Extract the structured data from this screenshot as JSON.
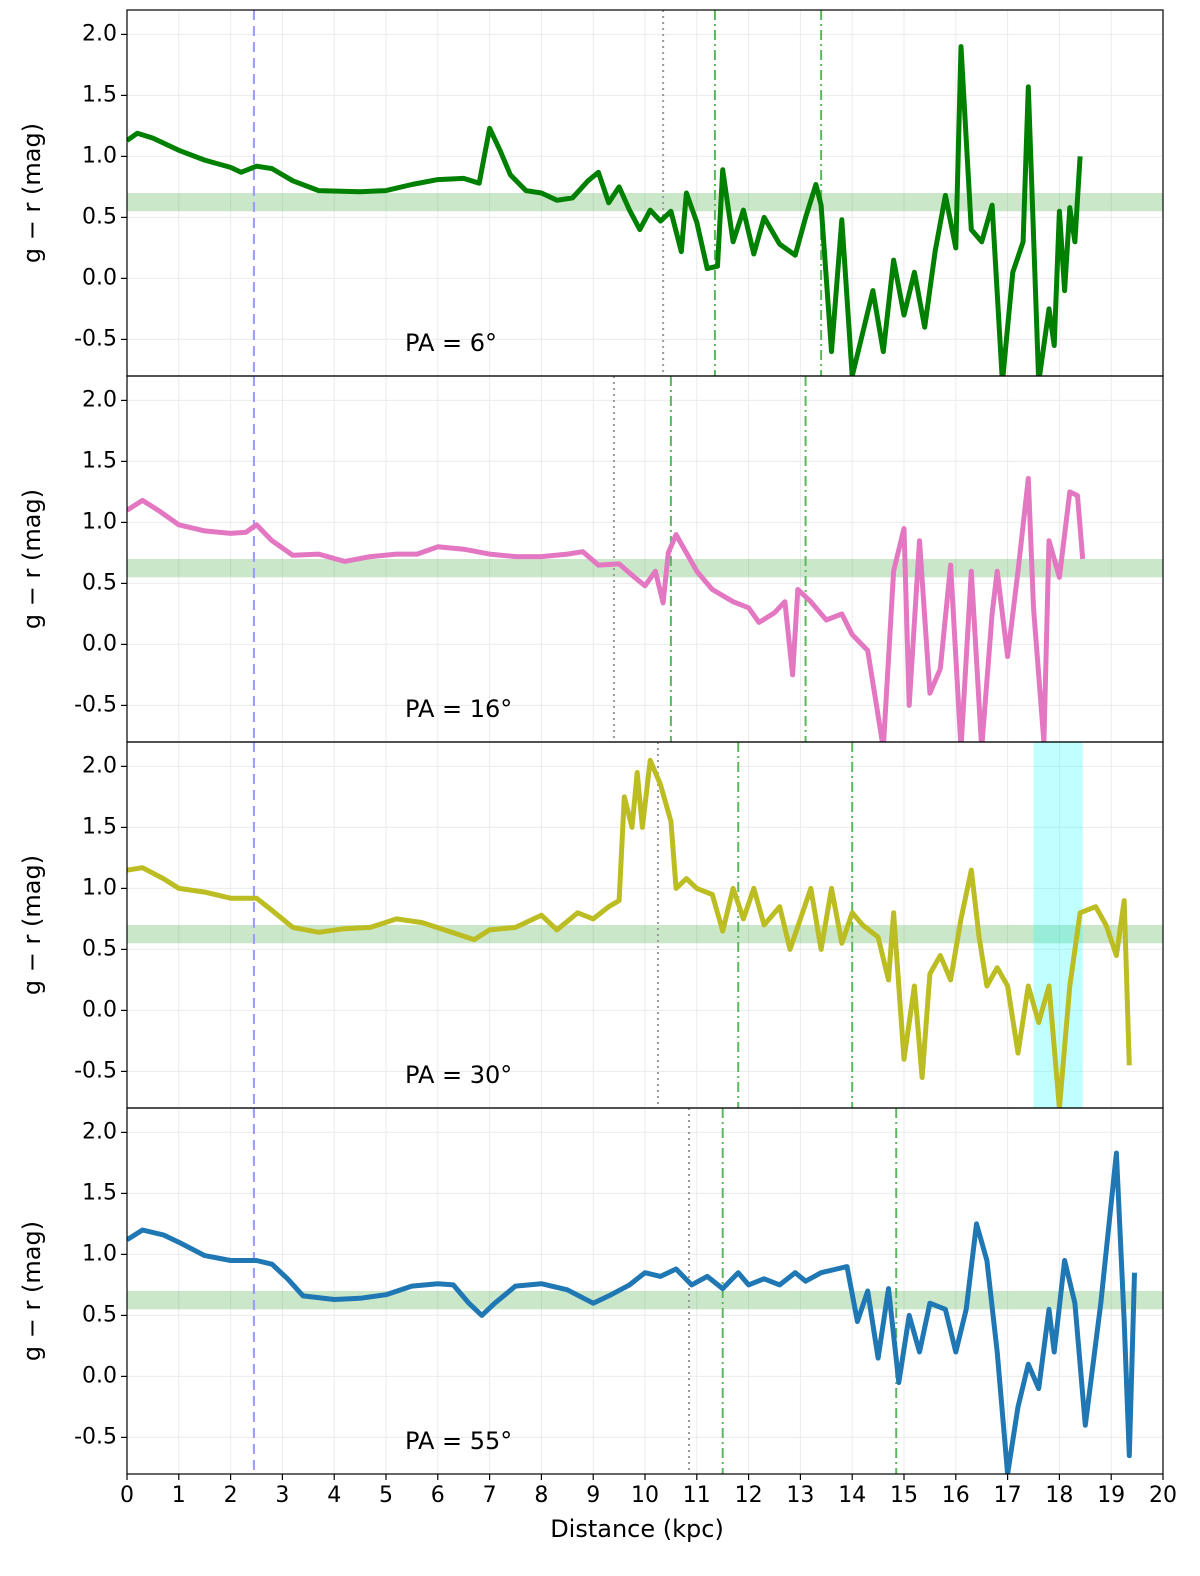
{
  "chart_data": [
    {
      "type": "line",
      "annotation": "PA = 6°",
      "ylabel": "g − r (mag)",
      "color": "#008000",
      "x": [
        0,
        0.2,
        0.5,
        1,
        1.5,
        2,
        2.2,
        2.5,
        2.8,
        3.2,
        3.7,
        4.5,
        5,
        5.5,
        6,
        6.5,
        6.8,
        7,
        7.2,
        7.4,
        7.7,
        8,
        8.3,
        8.6,
        8.9,
        9.1,
        9.3,
        9.5,
        9.7,
        9.9,
        10.1,
        10.3,
        10.5,
        10.7,
        10.8,
        11,
        11.2,
        11.4,
        11.5,
        11.7,
        11.9,
        12.1,
        12.3,
        12.6,
        12.9,
        13.1,
        13.3,
        13.4,
        13.6,
        13.8,
        14,
        14.2,
        14.4,
        14.6,
        14.8,
        15,
        15.2,
        15.4,
        15.6,
        15.8,
        16,
        16.1,
        16.3,
        16.5,
        16.7,
        16.9,
        17.1,
        17.3,
        17.4,
        17.6,
        17.8,
        17.9,
        18,
        18.1,
        18.2,
        18.3,
        18.4
      ],
      "values": [
        1.13,
        1.19,
        1.15,
        1.05,
        0.97,
        0.91,
        0.87,
        0.92,
        0.9,
        0.8,
        0.72,
        0.71,
        0.72,
        0.77,
        0.81,
        0.82,
        0.78,
        1.23,
        1.05,
        0.85,
        0.72,
        0.7,
        0.64,
        0.66,
        0.8,
        0.87,
        0.62,
        0.75,
        0.56,
        0.4,
        0.56,
        0.47,
        0.55,
        0.22,
        0.7,
        0.46,
        0.08,
        0.1,
        0.89,
        0.3,
        0.56,
        0.2,
        0.5,
        0.28,
        0.19,
        0.5,
        0.77,
        0.6,
        -0.6,
        0.48,
        -0.8,
        -0.45,
        -0.1,
        -0.6,
        0.15,
        -0.3,
        0.05,
        -0.4,
        0.22,
        0.68,
        0.25,
        1.9,
        0.4,
        0.3,
        0.6,
        -0.85,
        0.05,
        0.3,
        1.57,
        -0.85,
        -0.25,
        -0.55,
        0.55,
        -0.1,
        0.58,
        0.3,
        1.0
      ],
      "vlines": [
        {
          "x": 2.45,
          "color": "#9999ff",
          "style": "dashed"
        },
        {
          "x": 10.35,
          "color": "#999999",
          "style": "dotted"
        },
        {
          "x": 11.35,
          "color": "#5cb85c",
          "style": "dashdot"
        },
        {
          "x": 13.4,
          "color": "#5cb85c",
          "style": "dashdot"
        }
      ],
      "hband": [
        0.55,
        0.7
      ],
      "hband_color": "#2ca02c",
      "xlim": [
        0,
        20
      ],
      "xticks": [
        0,
        1,
        2,
        3,
        4,
        5,
        6,
        7,
        8,
        9,
        10,
        11,
        12,
        13,
        14,
        15,
        16,
        17,
        18,
        19,
        20
      ],
      "ylim": [
        -0.8,
        2.2
      ],
      "yticks": [
        -0.5,
        {
          "value": 0,
          "label": "0.0"
        },
        0.5,
        {
          "value": 1,
          "label": "1.0"
        },
        1.5,
        {
          "value": 2,
          "label": "2.0"
        }
      ],
      "grid": true
    },
    {
      "type": "line",
      "annotation": "PA = 16°",
      "ylabel": "g − r (mag)",
      "color": "#e377c2",
      "x": [
        0,
        0.3,
        0.6,
        1,
        1.5,
        2,
        2.3,
        2.5,
        2.8,
        3.2,
        3.7,
        4.2,
        4.7,
        5.2,
        5.6,
        6,
        6.5,
        7,
        7.5,
        8,
        8.5,
        8.8,
        9.1,
        9.5,
        9.8,
        10,
        10.2,
        10.35,
        10.45,
        10.6,
        10.8,
        11,
        11.3,
        11.7,
        12,
        12.2,
        12.5,
        12.7,
        12.85,
        12.95,
        13.2,
        13.5,
        13.8,
        14,
        14.3,
        14.6,
        14.8,
        15,
        15.1,
        15.3,
        15.5,
        15.7,
        15.9,
        16.1,
        16.3,
        16.5,
        16.7,
        16.8,
        17,
        17.2,
        17.4,
        17.5,
        17.7,
        17.8,
        18,
        18.2,
        18.35,
        18.45
      ],
      "values": [
        1.1,
        1.18,
        1.1,
        0.98,
        0.93,
        0.91,
        0.92,
        0.98,
        0.85,
        0.73,
        0.74,
        0.68,
        0.72,
        0.74,
        0.74,
        0.8,
        0.78,
        0.74,
        0.72,
        0.72,
        0.74,
        0.76,
        0.65,
        0.66,
        0.55,
        0.48,
        0.6,
        0.34,
        0.75,
        0.9,
        0.75,
        0.6,
        0.45,
        0.35,
        0.3,
        0.18,
        0.26,
        0.35,
        -0.25,
        0.45,
        0.35,
        0.2,
        0.25,
        0.08,
        -0.05,
        -0.85,
        0.6,
        0.95,
        -0.5,
        0.85,
        -0.4,
        -0.2,
        0.65,
        -0.85,
        0.6,
        -0.85,
        0.25,
        0.6,
        -0.1,
        0.6,
        1.36,
        0.3,
        -0.8,
        0.85,
        0.55,
        1.25,
        1.22,
        0.7
      ],
      "vlines": [
        {
          "x": 2.45,
          "color": "#9999ff",
          "style": "dashed"
        },
        {
          "x": 9.4,
          "color": "#999999",
          "style": "dotted"
        },
        {
          "x": 10.5,
          "color": "#5cb85c",
          "style": "dashdot"
        },
        {
          "x": 13.1,
          "color": "#5cb85c",
          "style": "dashdot"
        }
      ],
      "hband": [
        0.55,
        0.7
      ],
      "hband_color": "#2ca02c",
      "xlim": [
        0,
        20
      ],
      "xticks": [
        0,
        1,
        2,
        3,
        4,
        5,
        6,
        7,
        8,
        9,
        10,
        11,
        12,
        13,
        14,
        15,
        16,
        17,
        18,
        19,
        20
      ],
      "ylim": [
        -0.8,
        2.2
      ],
      "yticks": [
        -0.5,
        {
          "value": 0,
          "label": "0.0"
        },
        0.5,
        {
          "value": 1,
          "label": "1.0"
        },
        1.5,
        {
          "value": 2,
          "label": "2.0"
        }
      ],
      "grid": true
    },
    {
      "type": "line",
      "annotation": "PA = 30°",
      "ylabel": "g − r (mag)",
      "color": "#bcbd22",
      "x": [
        0,
        0.3,
        0.7,
        1,
        1.5,
        2,
        2.5,
        2.8,
        3.2,
        3.7,
        4.2,
        4.7,
        5.2,
        5.7,
        6.2,
        6.7,
        7,
        7.5,
        8,
        8.3,
        8.7,
        9,
        9.3,
        9.5,
        9.6,
        9.75,
        9.85,
        9.95,
        10.1,
        10.3,
        10.5,
        10.6,
        10.8,
        11,
        11.3,
        11.5,
        11.7,
        11.9,
        12.1,
        12.3,
        12.6,
        12.8,
        13,
        13.2,
        13.4,
        13.6,
        13.8,
        14,
        14.2,
        14.5,
        14.7,
        14.8,
        15,
        15.2,
        15.35,
        15.5,
        15.7,
        15.9,
        16.1,
        16.3,
        16.45,
        16.6,
        16.8,
        17,
        17.2,
        17.4,
        17.6,
        17.8,
        18,
        18.2,
        18.4,
        18.7,
        18.9,
        19.1,
        19.25,
        19.35
      ],
      "values": [
        1.15,
        1.17,
        1.08,
        1.0,
        0.97,
        0.92,
        0.92,
        0.82,
        0.68,
        0.64,
        0.67,
        0.68,
        0.75,
        0.72,
        0.65,
        0.58,
        0.66,
        0.68,
        0.78,
        0.66,
        0.8,
        0.75,
        0.85,
        0.9,
        1.75,
        1.5,
        1.95,
        1.5,
        2.05,
        1.85,
        1.55,
        1.0,
        1.08,
        1.0,
        0.95,
        0.65,
        1.0,
        0.75,
        1.0,
        0.7,
        0.85,
        0.5,
        0.75,
        1.0,
        0.5,
        1.0,
        0.55,
        0.8,
        0.7,
        0.6,
        0.25,
        0.8,
        -0.4,
        0.2,
        -0.55,
        0.3,
        0.45,
        0.25,
        0.75,
        1.15,
        0.6,
        0.2,
        0.35,
        0.2,
        -0.35,
        0.2,
        -0.1,
        0.2,
        -0.8,
        0.2,
        0.8,
        0.85,
        0.7,
        0.45,
        0.9,
        -0.45
      ],
      "vlines": [
        {
          "x": 2.45,
          "color": "#9999ff",
          "style": "dashed"
        },
        {
          "x": 10.25,
          "color": "#999999",
          "style": "dotted"
        },
        {
          "x": 11.8,
          "color": "#5cb85c",
          "style": "dashdot"
        },
        {
          "x": 14.0,
          "color": "#5cb85c",
          "style": "dashdot"
        }
      ],
      "hband": [
        0.55,
        0.7
      ],
      "hband_color": "#2ca02c",
      "vband": [
        17.5,
        18.45
      ],
      "vband_color": "#00ffff",
      "xlim": [
        0,
        20
      ],
      "xticks": [
        0,
        1,
        2,
        3,
        4,
        5,
        6,
        7,
        8,
        9,
        10,
        11,
        12,
        13,
        14,
        15,
        16,
        17,
        18,
        19,
        20
      ],
      "ylim": [
        -0.8,
        2.2
      ],
      "yticks": [
        -0.5,
        {
          "value": 0,
          "label": "0.0"
        },
        0.5,
        {
          "value": 1,
          "label": "1.0"
        },
        1.5,
        {
          "value": 2,
          "label": "2.0"
        }
      ],
      "grid": true
    },
    {
      "type": "line",
      "annotation": "PA = 55°",
      "ylabel": "g − r (mag)",
      "xlabel": "Distance (kpc)",
      "color": "#1f77b4",
      "x": [
        0,
        0.3,
        0.7,
        1,
        1.5,
        2,
        2.5,
        2.8,
        3.1,
        3.4,
        4,
        4.5,
        5,
        5.5,
        6,
        6.3,
        6.6,
        6.85,
        7.1,
        7.5,
        8,
        8.5,
        9,
        9.3,
        9.7,
        10,
        10.3,
        10.6,
        10.9,
        11.2,
        11.5,
        11.8,
        12,
        12.3,
        12.6,
        12.9,
        13.1,
        13.4,
        13.7,
        13.9,
        14.1,
        14.3,
        14.5,
        14.7,
        14.9,
        15.1,
        15.3,
        15.5,
        15.8,
        16,
        16.2,
        16.4,
        16.6,
        16.8,
        17,
        17.2,
        17.4,
        17.6,
        17.8,
        17.9,
        18.1,
        18.3,
        18.5,
        18.8,
        19.1,
        19.25,
        19.35,
        19.45
      ],
      "values": [
        1.12,
        1.2,
        1.16,
        1.1,
        0.99,
        0.95,
        0.95,
        0.92,
        0.8,
        0.66,
        0.63,
        0.64,
        0.67,
        0.74,
        0.76,
        0.75,
        0.6,
        0.5,
        0.6,
        0.74,
        0.76,
        0.71,
        0.6,
        0.66,
        0.75,
        0.85,
        0.82,
        0.88,
        0.75,
        0.82,
        0.72,
        0.85,
        0.75,
        0.8,
        0.75,
        0.85,
        0.78,
        0.85,
        0.88,
        0.9,
        0.45,
        0.7,
        0.15,
        0.72,
        -0.05,
        0.5,
        0.2,
        0.6,
        0.55,
        0.2,
        0.55,
        1.25,
        0.95,
        0.2,
        -0.8,
        -0.25,
        0.1,
        -0.1,
        0.55,
        0.2,
        0.95,
        0.6,
        -0.4,
        0.6,
        1.83,
        0.45,
        -0.65,
        0.85
      ],
      "vlines": [
        {
          "x": 2.45,
          "color": "#9999ff",
          "style": "dashed"
        },
        {
          "x": 10.85,
          "color": "#999999",
          "style": "dotted"
        },
        {
          "x": 11.5,
          "color": "#5cb85c",
          "style": "dashdot"
        },
        {
          "x": 14.85,
          "color": "#5cb85c",
          "style": "dashdot"
        }
      ],
      "hband": [
        0.55,
        0.7
      ],
      "hband_color": "#2ca02c",
      "xlim": [
        0,
        20
      ],
      "xticks": [
        0,
        1,
        2,
        3,
        4,
        5,
        6,
        7,
        8,
        9,
        10,
        11,
        12,
        13,
        14,
        15,
        16,
        17,
        18,
        19,
        20
      ],
      "ylim": [
        -0.8,
        2.2
      ],
      "yticks": [
        -0.5,
        {
          "value": 0,
          "label": "0.0"
        },
        0.5,
        {
          "value": 1,
          "label": "1.0"
        },
        1.5,
        {
          "value": 2,
          "label": "2.0"
        }
      ],
      "grid": true
    }
  ]
}
